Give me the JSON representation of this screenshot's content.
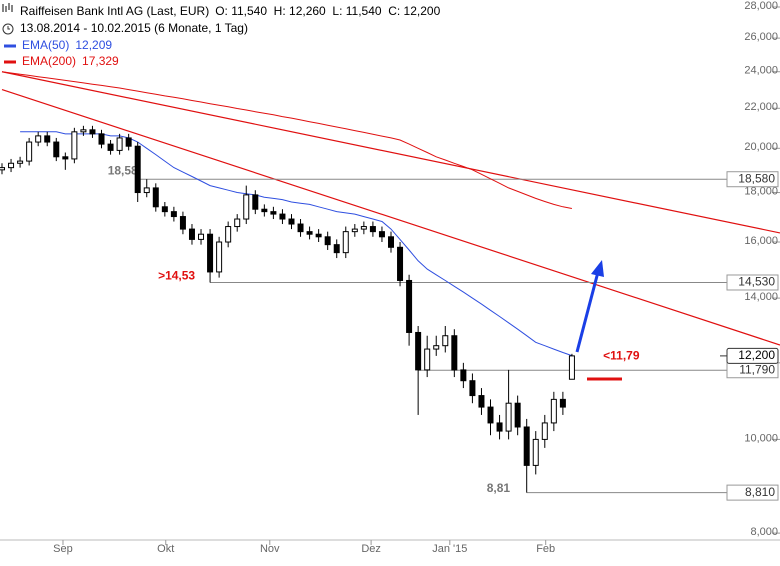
{
  "header": {
    "title": "Raiffeisen Bank Intl AG (Last, EUR)",
    "ohlc": "O: 11,540  H: 12,260  L: 11,540  C: 12,200",
    "range": "13.08.2014 - 10.02.2015 (6 Monate, 1 Tag)"
  },
  "chart_data": {
    "type": "candlestick",
    "log": true,
    "xlim": [
      0,
      86
    ],
    "ylim": [
      7.87,
      28.47
    ],
    "xticks": [
      {
        "value": 6.74,
        "label": "Sep"
      },
      {
        "value": 18.1,
        "label": "Okt"
      },
      {
        "value": 29.6,
        "label": "Nov"
      },
      {
        "value": 40.8,
        "label": "Dez"
      },
      {
        "value": 49.5,
        "label": "Jan '15"
      },
      {
        "value": 60.1,
        "label": "Feb"
      }
    ],
    "yticks": [
      {
        "value": 8,
        "label": "8,000"
      },
      {
        "value": 10,
        "label": "10,000"
      },
      {
        "value": 12,
        "label": "12,000"
      },
      {
        "value": 14,
        "label": "14,000"
      },
      {
        "value": 16,
        "label": "16,000"
      },
      {
        "value": 18,
        "label": "18,000"
      },
      {
        "value": 20,
        "label": "20,000"
      },
      {
        "value": 22,
        "label": "22,000"
      },
      {
        "value": 24,
        "label": "24,000"
      },
      {
        "value": 26,
        "label": "26,000"
      },
      {
        "value": 28,
        "label": "28,000"
      }
    ],
    "color_up": "#ffffff",
    "color_down": "#000000",
    "open": [
      19.0,
      19.1,
      19.3,
      19.4,
      20.3,
      20.6,
      20.3,
      19.6,
      19.5,
      20.8,
      20.9,
      20.7,
      20.2,
      19.9,
      20.5,
      20.1,
      18.0,
      18.2,
      17.4,
      17.2,
      17.0,
      16.5,
      16.1,
      16.3,
      14.9,
      16.0,
      16.6,
      16.9,
      17.9,
      17.3,
      17.2,
      17.1,
      16.9,
      16.7,
      16.4,
      16.3,
      16.2,
      15.9,
      15.6,
      16.4,
      16.5,
      16.6,
      16.4,
      16.2,
      15.8,
      14.6,
      12.9,
      11.8,
      12.4,
      12.5,
      12.8,
      11.8,
      11.5,
      11.1,
      10.8,
      10.4,
      10.2,
      10.9,
      10.3,
      9.4,
      10.0,
      10.4,
      11.0,
      11.54
    ],
    "high": [
      19.3,
      19.5,
      19.6,
      20.5,
      20.8,
      20.8,
      20.5,
      19.8,
      21.0,
      21.1,
      21.1,
      20.9,
      20.4,
      20.7,
      20.7,
      20.3,
      18.58,
      18.4,
      17.6,
      17.4,
      17.2,
      16.7,
      16.5,
      16.5,
      16.2,
      16.8,
      17.1,
      18.3,
      18.1,
      17.5,
      17.4,
      17.3,
      17.1,
      16.9,
      16.6,
      16.5,
      16.4,
      16.1,
      16.6,
      16.7,
      16.8,
      16.8,
      16.6,
      16.4,
      16.0,
      14.8,
      13.1,
      12.8,
      12.8,
      13.1,
      13.0,
      12.0,
      11.7,
      11.3,
      11.0,
      10.6,
      11.8,
      11.1,
      10.5,
      10.2,
      10.6,
      11.2,
      11.2,
      12.26
    ],
    "low": [
      18.8,
      18.9,
      19.1,
      19.2,
      20.1,
      20.1,
      19.4,
      19.0,
      19.3,
      20.6,
      20.5,
      20.0,
      19.7,
      19.7,
      19.9,
      17.6,
      17.8,
      17.2,
      17.0,
      16.8,
      16.3,
      15.9,
      15.9,
      14.53,
      14.7,
      15.8,
      16.4,
      16.7,
      17.1,
      17.0,
      16.9,
      16.7,
      16.5,
      16.2,
      16.1,
      16.0,
      15.7,
      15.4,
      15.4,
      16.2,
      16.3,
      16.2,
      16.0,
      15.6,
      14.4,
      12.5,
      10.6,
      11.6,
      12.2,
      12.3,
      11.6,
      11.3,
      10.9,
      10.6,
      10.1,
      10.0,
      10.0,
      10.1,
      8.81,
      9.2,
      9.8,
      10.2,
      10.6,
      11.54
    ],
    "close": [
      19.1,
      19.3,
      19.4,
      20.3,
      20.6,
      20.3,
      19.6,
      19.5,
      20.8,
      20.9,
      20.7,
      20.2,
      19.9,
      20.5,
      20.1,
      18.0,
      18.2,
      17.4,
      17.2,
      17.0,
      16.5,
      16.1,
      16.3,
      14.9,
      16.0,
      16.6,
      16.9,
      17.9,
      17.3,
      17.2,
      17.1,
      16.9,
      16.7,
      16.4,
      16.3,
      16.2,
      15.9,
      15.6,
      16.4,
      16.5,
      16.6,
      16.4,
      16.2,
      15.8,
      14.6,
      12.9,
      11.8,
      12.4,
      12.5,
      12.8,
      11.8,
      11.5,
      11.1,
      10.8,
      10.4,
      10.2,
      10.9,
      10.3,
      9.4,
      10.0,
      10.4,
      11.0,
      10.8,
      12.2
    ],
    "series": [
      {
        "name": "EMA(50)",
        "value_label": "12,209",
        "color": "#2f4fe0",
        "values": [
          null,
          null,
          20.8,
          20.8,
          20.8,
          20.8,
          20.8,
          20.7,
          20.7,
          20.7,
          20.7,
          20.7,
          20.6,
          20.6,
          20.5,
          20.3,
          20.0,
          19.7,
          19.4,
          19.1,
          18.9,
          18.7,
          18.5,
          18.3,
          18.2,
          18.1,
          18.0,
          17.95,
          17.9,
          17.8,
          17.75,
          17.7,
          17.6,
          17.55,
          17.5,
          17.4,
          17.3,
          17.2,
          17.15,
          17.1,
          17.0,
          16.9,
          16.8,
          16.5,
          16.1,
          15.7,
          15.3,
          15.0,
          14.8,
          14.6,
          14.4,
          14.2,
          14.0,
          13.8,
          13.6,
          13.4,
          13.2,
          13.0,
          12.8,
          12.6,
          12.5,
          12.4,
          12.3,
          12.209
        ]
      },
      {
        "name": "EMA(200)",
        "value_label": "17,329",
        "color": "#e01010",
        "values": [
          24.0,
          23.93,
          23.86,
          23.79,
          23.72,
          23.65,
          23.58,
          23.51,
          23.44,
          23.37,
          23.3,
          23.23,
          23.16,
          23.09,
          23.0,
          22.92,
          22.83,
          22.75,
          22.66,
          22.58,
          22.5,
          22.41,
          22.33,
          22.24,
          22.16,
          22.08,
          21.99,
          21.91,
          21.82,
          21.74,
          21.66,
          21.57,
          21.49,
          21.4,
          21.31,
          21.22,
          21.13,
          21.04,
          20.95,
          20.86,
          20.77,
          20.68,
          20.59,
          20.5,
          20.4,
          20.2,
          20.0,
          19.8,
          19.6,
          19.45,
          19.3,
          19.15,
          19.0,
          18.8,
          18.6,
          18.4,
          18.2,
          18.05,
          17.9,
          17.75,
          17.62,
          17.5,
          17.4,
          17.329
        ]
      }
    ],
    "trendlines": [
      {
        "color": "#e01010",
        "x": [
          0,
          86
        ],
        "values": [
          24.0,
          16.35
        ]
      },
      {
        "color": "#e01010",
        "x": [
          0,
          86
        ],
        "values": [
          23.0,
          12.52
        ]
      }
    ],
    "levels": [
      {
        "value": 18.58,
        "label": "18,580",
        "start": 15,
        "note": "18,58",
        "note_color": "#777777"
      },
      {
        "value": 14.53,
        "label": "14,530",
        "start": 23,
        "note": ">14,53",
        "note_color": "#e01010"
      },
      {
        "value": 11.79,
        "label": "11,790",
        "start": 46,
        "note": "<11,79",
        "note_color": "#e01010"
      },
      {
        "value": 8.81,
        "label": "8,810",
        "start": 58,
        "note": "8,81",
        "note_color": "#777777"
      }
    ],
    "last": {
      "value": 12.2,
      "label": "12,200"
    }
  }
}
